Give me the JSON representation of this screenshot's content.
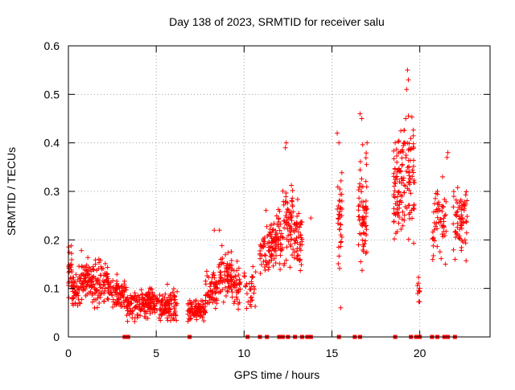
{
  "chart_data": {
    "type": "scatter",
    "title": "Day 138 of 2023, SRMTID for receiver salu",
    "xlabel": "GPS time / hours",
    "ylabel": "SRMTID / TECUs",
    "xlim": [
      0,
      24
    ],
    "ylim": [
      0,
      0.6
    ],
    "xticks": [
      0,
      5,
      10,
      15,
      20
    ],
    "yticks": [
      0,
      0.1,
      0.2,
      0.3,
      0.4,
      0.5,
      0.6
    ],
    "xtick_labels": [
      "0",
      "5",
      "10",
      "15",
      "20"
    ],
    "ytick_labels": [
      "0",
      "0.1",
      "0.2",
      "0.3",
      "0.4",
      "0.5",
      "0.6"
    ],
    "grid": true,
    "marker": "+",
    "color": "#ff0000",
    "series": [
      {
        "name": "SRMTID",
        "segments": [
          {
            "t0": 0.0,
            "t1": 0.2,
            "n": 25,
            "mean": 0.14,
            "spread": 0.04
          },
          {
            "t0": 0.2,
            "t1": 0.6,
            "n": 40,
            "mean": 0.09,
            "spread": 0.03
          },
          {
            "t0": 0.6,
            "t1": 1.3,
            "n": 70,
            "mean": 0.12,
            "spread": 0.04
          },
          {
            "t0": 1.3,
            "t1": 2.3,
            "n": 90,
            "mean": 0.11,
            "spread": 0.04
          },
          {
            "t0": 2.3,
            "t1": 3.3,
            "n": 80,
            "mean": 0.09,
            "spread": 0.03
          },
          {
            "t0": 3.3,
            "t1": 4.2,
            "n": 80,
            "mean": 0.065,
            "spread": 0.025
          },
          {
            "t0": 4.2,
            "t1": 5.2,
            "n": 90,
            "mean": 0.07,
            "spread": 0.025
          },
          {
            "t0": 5.2,
            "t1": 6.2,
            "n": 90,
            "mean": 0.065,
            "spread": 0.03
          },
          {
            "t0": 6.8,
            "t1": 7.8,
            "n": 90,
            "mean": 0.055,
            "spread": 0.02
          },
          {
            "t0": 7.8,
            "t1": 8.5,
            "n": 60,
            "mean": 0.09,
            "spread": 0.04
          },
          {
            "t0": 8.5,
            "t1": 9.3,
            "n": 70,
            "mean": 0.13,
            "spread": 0.04
          },
          {
            "t0": 9.3,
            "t1": 9.8,
            "n": 40,
            "mean": 0.11,
            "spread": 0.04
          },
          {
            "t0": 10.0,
            "t1": 10.7,
            "n": 30,
            "mean": 0.1,
            "spread": 0.04
          },
          {
            "t0": 10.9,
            "t1": 11.6,
            "n": 60,
            "mean": 0.18,
            "spread": 0.05
          },
          {
            "t0": 11.6,
            "t1": 12.2,
            "n": 60,
            "mean": 0.2,
            "spread": 0.05
          },
          {
            "t0": 12.2,
            "t1": 12.8,
            "n": 60,
            "mean": 0.24,
            "spread": 0.07
          },
          {
            "t0": 12.8,
            "t1": 13.3,
            "n": 50,
            "mean": 0.2,
            "spread": 0.06
          },
          {
            "t0": 15.3,
            "t1": 15.6,
            "n": 35,
            "mean": 0.24,
            "spread": 0.1
          },
          {
            "t0": 16.5,
            "t1": 17.0,
            "n": 70,
            "mean": 0.26,
            "spread": 0.09
          },
          {
            "t0": 18.5,
            "t1": 19.0,
            "n": 70,
            "mean": 0.3,
            "spread": 0.09
          },
          {
            "t0": 19.0,
            "t1": 19.7,
            "n": 80,
            "mean": 0.32,
            "spread": 0.12
          },
          {
            "t0": 19.8,
            "t1": 20.0,
            "n": 10,
            "mean": 0.1,
            "spread": 0.03
          },
          {
            "t0": 20.7,
            "t1": 21.5,
            "n": 55,
            "mean": 0.24,
            "spread": 0.07
          },
          {
            "t0": 21.9,
            "t1": 22.7,
            "n": 70,
            "mean": 0.24,
            "spread": 0.06
          }
        ],
        "extra_points": [
          [
            15.3,
            0.42
          ],
          [
            15.4,
            0.4
          ],
          [
            15.5,
            0.06
          ],
          [
            16.6,
            0.46
          ],
          [
            16.7,
            0.45
          ],
          [
            17.0,
            0.4
          ],
          [
            19.3,
            0.55
          ],
          [
            19.35,
            0.53
          ],
          [
            19.25,
            0.51
          ],
          [
            19.2,
            0.45
          ],
          [
            18.6,
            0.4
          ],
          [
            21.6,
            0.38
          ],
          [
            21.55,
            0.37
          ],
          [
            21.0,
            0.3
          ],
          [
            21.3,
            0.33
          ],
          [
            12.4,
            0.4
          ],
          [
            12.35,
            0.39
          ],
          [
            13.8,
            0.245
          ],
          [
            8.3,
            0.22
          ],
          [
            8.6,
            0.22
          ]
        ]
      }
    ],
    "baseline_markers": [
      3.2,
      3.3,
      3.4,
      6.9,
      10.2,
      10.9,
      11.3,
      12.0,
      12.2,
      12.5,
      12.9,
      13.3,
      13.6,
      13.8,
      15.4,
      16.3,
      16.6,
      18.6,
      19.5,
      19.8,
      20.0,
      20.7,
      21.0,
      21.4,
      21.6,
      22.0
    ]
  }
}
